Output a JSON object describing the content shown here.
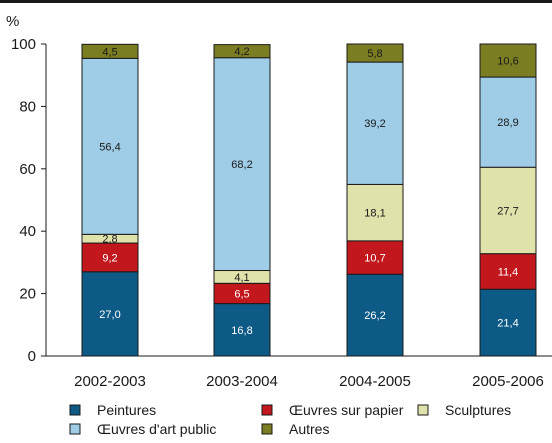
{
  "chart_data": {
    "type": "bar",
    "stacked": true,
    "ylabel": "%",
    "ylim": [
      0,
      100
    ],
    "yticks": [
      0,
      20,
      40,
      60,
      80,
      100
    ],
    "grid": false,
    "legend_position": "bottom",
    "categories": [
      "2002-2003",
      "2003-2004",
      "2004-2005",
      "2005-2006"
    ],
    "series": [
      {
        "name": "Peintures",
        "color": "#0d5a86",
        "label_color": "#ffffff",
        "values": [
          27.0,
          16.8,
          26.2,
          21.4
        ],
        "labels": [
          "27,0",
          "16,8",
          "26,2",
          "21,4"
        ]
      },
      {
        "name": "Œuvres sur papier",
        "color": "#c2171d",
        "label_color": "#ffffff",
        "values": [
          9.2,
          6.5,
          10.7,
          11.4
        ],
        "labels": [
          "9,2",
          "6,5",
          "10,7",
          "11,4"
        ]
      },
      {
        "name": "Sculptures",
        "color": "#e0e2ab",
        "label_color": "#1a1a1a",
        "values": [
          2.8,
          4.1,
          18.1,
          27.7
        ],
        "labels": [
          "2,8",
          "4,1",
          "18,1",
          "27,7"
        ]
      },
      {
        "name": "Œuvres d'art public",
        "color": "#9fcce6",
        "label_color": "#1a1a1a",
        "values": [
          56.4,
          68.2,
          39.2,
          28.9
        ],
        "labels": [
          "56,4",
          "68,2",
          "39,2",
          "28,9"
        ]
      },
      {
        "name": "Autres",
        "color": "#7a7d21",
        "label_color": "#1a1a1a",
        "values": [
          4.5,
          4.2,
          5.8,
          10.6
        ],
        "labels": [
          "4,5",
          "4,2",
          "5,8",
          "10,6"
        ]
      }
    ]
  }
}
